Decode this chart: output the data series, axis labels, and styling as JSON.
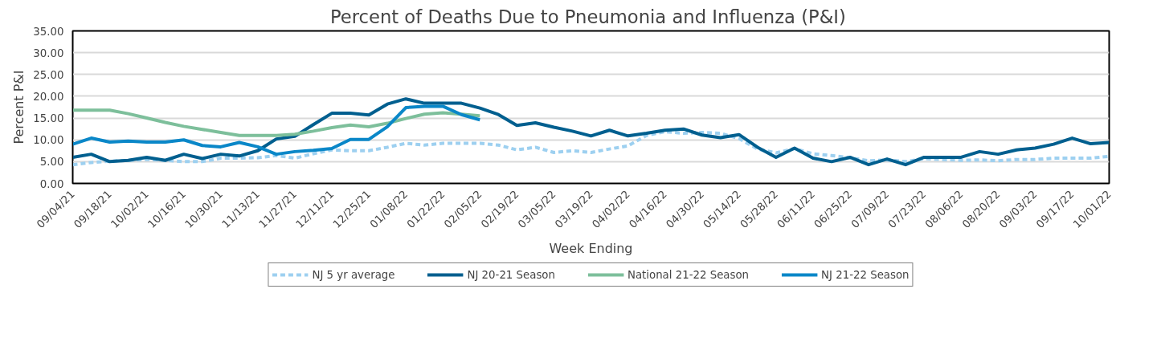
{
  "chart_data": {
    "type": "line",
    "title": "Percent of Deaths Due to Pneumonia  and Influenza (P&I)",
    "xlabel": "Week Ending",
    "ylabel": "Percent P&I",
    "categories": [
      "09/04/21",
      null,
      "09/18/21",
      null,
      "10/02/21",
      null,
      "10/16/21",
      null,
      "10/30/21",
      null,
      "11/13/21",
      null,
      "11/27/21",
      null,
      "12/11/21",
      null,
      "12/25/21",
      null,
      "01/08/22",
      null,
      "01/22/22",
      null,
      "02/05/22",
      null,
      "02/19/22",
      null,
      "03/05/22",
      null,
      "03/19/22",
      null,
      "04/02/22",
      null,
      "04/16/22",
      null,
      "04/30/22",
      null,
      "05/14/22",
      null,
      "05/28/22",
      null,
      "06/11/22",
      null,
      "06/25/22",
      null,
      "07/09/22",
      null,
      "07/23/22",
      null,
      "08/06/22",
      null,
      "08/20/22",
      null,
      "09/03/22",
      null,
      "09/17/22",
      null,
      "10/01/22"
    ],
    "series": [
      {
        "name": "NJ 5 yr average",
        "color": "#9dd0f0",
        "line_style": "dashed",
        "values": [
          4.3,
          4.8,
          5.1,
          5.3,
          5.5,
          5.3,
          5.0,
          5.0,
          5.8,
          5.8,
          5.9,
          6.4,
          5.8,
          6.8,
          7.7,
          7.5,
          7.5,
          8.3,
          9.2,
          8.8,
          9.2,
          9.2,
          9.2,
          8.8,
          7.7,
          8.3,
          7.1,
          7.5,
          7.1,
          7.9,
          8.6,
          11.0,
          11.9,
          11.5,
          11.7,
          11.5,
          10.3,
          7.9,
          7.0,
          8.0,
          6.8,
          6.4,
          5.9,
          5.2,
          5.4,
          5.0,
          5.7,
          5.5,
          5.3,
          5.4,
          5.2,
          5.5,
          5.5,
          5.8,
          5.8,
          5.8,
          6.2
        ]
      },
      {
        "name": "NJ 20-21 Season",
        "color": "#005f8f",
        "line_style": "solid",
        "values": [
          6.0,
          6.7,
          5.0,
          5.3,
          6.0,
          5.3,
          6.7,
          5.7,
          6.7,
          6.3,
          7.5,
          10.2,
          10.8,
          13.5,
          16.1,
          16.1,
          15.7,
          18.2,
          19.4,
          18.4,
          18.4,
          18.4,
          17.3,
          15.8,
          13.3,
          13.9,
          12.9,
          12.0,
          10.9,
          12.2,
          10.9,
          11.5,
          12.2,
          12.5,
          11.1,
          10.5,
          11.2,
          8.3,
          6.0,
          8.1,
          5.8,
          5.0,
          6.0,
          4.3,
          5.6,
          4.3,
          6.0,
          6.0,
          6.0,
          7.3,
          6.7,
          7.7,
          8.1,
          9.0,
          10.4,
          9.1,
          9.4
        ]
      },
      {
        "name": "National 21-22 Season",
        "color": "#7dbf9b",
        "line_style": "solid",
        "values": [
          16.8,
          16.8,
          16.8,
          16.0,
          15.0,
          14.0,
          13.1,
          12.4,
          11.7,
          11.0,
          11.0,
          11.0,
          11.3,
          12.0,
          12.8,
          13.4,
          13.0,
          13.8,
          14.9,
          15.9,
          16.2,
          15.9,
          15.5,
          null,
          null,
          null,
          null,
          null,
          null,
          null,
          null,
          null,
          null,
          null,
          null,
          null,
          null,
          null,
          null,
          null,
          null,
          null,
          null,
          null,
          null,
          null,
          null,
          null,
          null,
          null,
          null,
          null,
          null,
          null,
          null,
          null,
          null
        ]
      },
      {
        "name": "NJ 21-22 Season",
        "color": "#0a87c8",
        "line_style": "solid",
        "values": [
          9.0,
          10.4,
          9.5,
          9.7,
          9.5,
          9.5,
          10.0,
          8.7,
          8.4,
          9.4,
          8.4,
          6.7,
          7.3,
          7.6,
          8.0,
          10.1,
          10.1,
          13.0,
          17.4,
          17.7,
          17.7,
          15.8,
          14.6,
          null,
          null,
          null,
          null,
          null,
          null,
          null,
          null,
          null,
          null,
          null,
          null,
          null,
          null,
          null,
          null,
          null,
          null,
          null,
          null,
          null,
          null,
          null,
          null,
          null,
          null,
          null,
          null,
          null,
          null,
          null,
          null,
          null,
          null
        ]
      }
    ],
    "ylim": [
      0,
      35
    ],
    "yticks": [
      {
        "value": 0,
        "label": "0.00"
      },
      {
        "value": 5,
        "label": "5.00"
      },
      {
        "value": 10,
        "label": "10.00"
      },
      {
        "value": 15,
        "label": "15.00"
      },
      {
        "value": 20,
        "label": "20.00"
      },
      {
        "value": 25,
        "label": "25.00"
      },
      {
        "value": 30,
        "label": "30.00"
      },
      {
        "value": 35,
        "label": "35.00"
      }
    ],
    "grid": "y",
    "legend": "bottom",
    "marker": "none"
  }
}
